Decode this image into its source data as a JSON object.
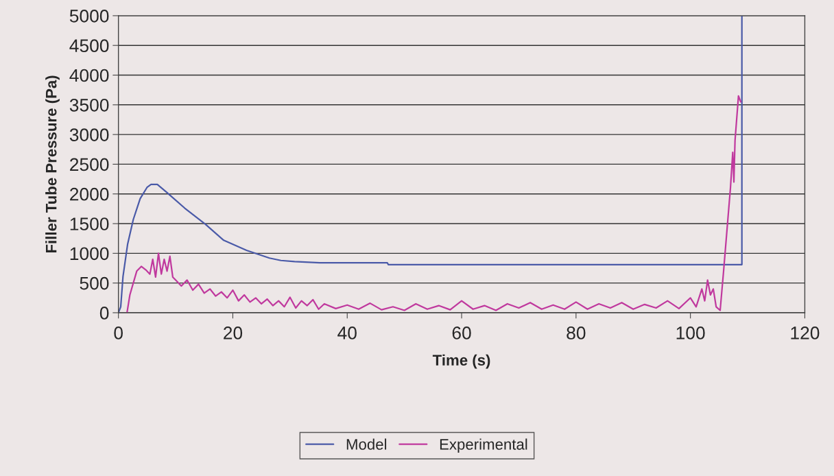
{
  "chart_data": {
    "type": "line",
    "xlabel": "Time (s)",
    "ylabel": "Filler Tube Pressure (Pa)",
    "xlim": [
      0,
      120
    ],
    "xticks": [
      0,
      20,
      40,
      60,
      80,
      100,
      120
    ],
    "ylim": [
      0,
      5000
    ],
    "yticks": [
      0,
      500,
      1000,
      1500,
      2000,
      2500,
      3000,
      3500,
      4000,
      4500,
      5000
    ],
    "grid": "y",
    "legend": "bottom",
    "marker": "none",
    "line_style": "solid",
    "series": [
      {
        "name": "Model",
        "color": "#4a5aa8",
        "x": [
          0,
          0.4,
          0.8,
          1.6,
          2.6,
          3.8,
          5,
          5.7,
          6.8,
          8.4,
          11.6,
          15.2,
          18.4,
          22.4,
          26.4,
          28.4,
          30.8,
          35.2,
          47,
          47.2,
          109,
          109
        ],
        "values": [
          0,
          100,
          610,
          1150,
          1570,
          1920,
          2110,
          2160,
          2160,
          2030,
          1760,
          1490,
          1220,
          1050,
          920,
          880,
          860,
          840,
          840,
          810,
          810,
          5000
        ]
      },
      {
        "name": "Experimental",
        "color": "#c0399e",
        "x": [
          1.5,
          2,
          2.6,
          3.2,
          4,
          4.8,
          5.5,
          6,
          6.5,
          7,
          7.5,
          8,
          8.5,
          9,
          9.5,
          10,
          11,
          12,
          13,
          14,
          15,
          16,
          17,
          18,
          19,
          20,
          21,
          22,
          23,
          24,
          25,
          26,
          27,
          28,
          29,
          30,
          31,
          32,
          33,
          34,
          35,
          36,
          38,
          40,
          42,
          44,
          46,
          48,
          50,
          52,
          54,
          56,
          58,
          60,
          62,
          64,
          66,
          68,
          70,
          72,
          74,
          76,
          78,
          80,
          82,
          84,
          86,
          88,
          90,
          92,
          94,
          96,
          98,
          100,
          101,
          102,
          102.5,
          103,
          103.5,
          104,
          104.5,
          105.2,
          105.8,
          106.4,
          107,
          107.4,
          107.6,
          107.8,
          108.2,
          108.4,
          108.8
        ],
        "values": [
          0,
          300,
          500,
          700,
          780,
          720,
          650,
          900,
          600,
          1000,
          650,
          900,
          700,
          950,
          600,
          550,
          450,
          550,
          380,
          480,
          330,
          400,
          280,
          350,
          250,
          380,
          200,
          300,
          180,
          250,
          150,
          230,
          120,
          200,
          100,
          260,
          80,
          200,
          120,
          220,
          60,
          150,
          70,
          130,
          60,
          160,
          50,
          100,
          40,
          150,
          60,
          120,
          50,
          200,
          60,
          120,
          40,
          150,
          80,
          170,
          60,
          130,
          60,
          180,
          60,
          150,
          80,
          170,
          60,
          140,
          80,
          200,
          70,
          250,
          100,
          400,
          200,
          550,
          300,
          400,
          100,
          40,
          700,
          1400,
          2100,
          2700,
          2200,
          2900,
          3400,
          3650,
          3550
        ]
      }
    ]
  }
}
